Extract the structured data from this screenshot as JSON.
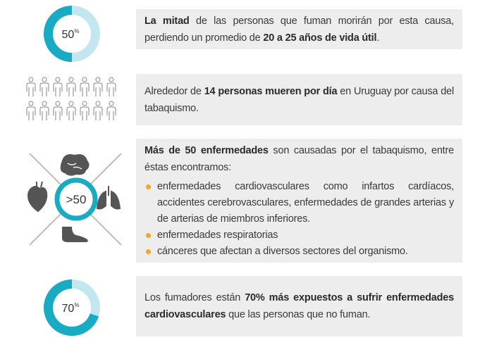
{
  "sections": [
    {
      "donut": {
        "value": 50,
        "label": "50",
        "unit": "%"
      },
      "text": [
        {
          "text": "La mitad",
          "bold": true
        },
        {
          "text": " de las personas que fuman morirán por esta causa, perdiendo un promedio de "
        },
        {
          "text": "20 a 25 años de vida útil",
          "bold": true
        },
        {
          "text": "."
        }
      ]
    },
    {
      "text": [
        {
          "text": "Alrededor de "
        },
        {
          "text": "14 personas mueren por día",
          "bold": true
        },
        {
          "text": " en Uruguay por causa del tabaquismo."
        }
      ]
    },
    {
      "badge": ">50",
      "text": [
        {
          "text": "Más de 50 enfermedades",
          "bold": true
        },
        {
          "text": " son causadas por el tabaquismo, entre éstas encontramos:"
        }
      ],
      "bullets": [
        "enfermedades cardiovasculares como infartos cardíacos, accidentes cerebrovasculares, enfermedades de grandes arterias y de arterias de miembros inferiores.",
        "enfermedades respiratorias",
        "cánceres que afectan a diversos sectores del organismo."
      ]
    },
    {
      "donut": {
        "value": 70,
        "label": "70",
        "unit": "%"
      },
      "text": [
        {
          "text": "Los fumadores están "
        },
        {
          "text": "70% más expuestos a sufrir enfermedades cardiovasculares",
          "bold": true
        },
        {
          "text": " que las personas que no fuman."
        }
      ]
    }
  ]
}
